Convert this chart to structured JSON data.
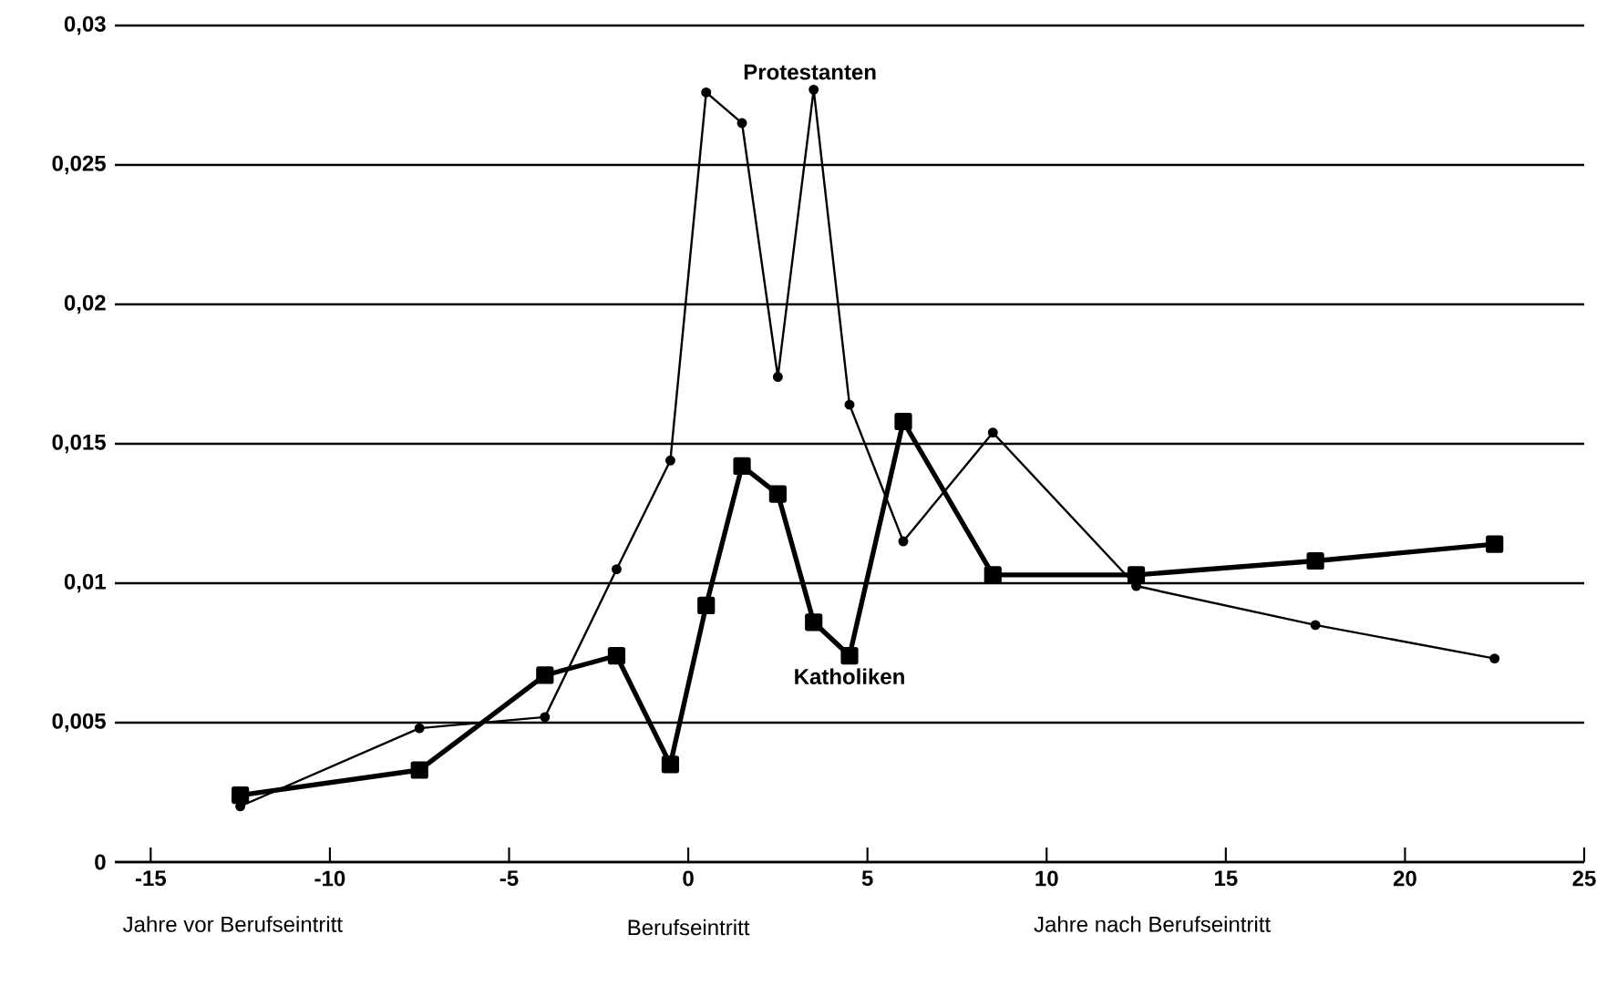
{
  "chart_data": {
    "type": "line",
    "xlabel": "Berufseintritt",
    "annotations": [
      "Jahre vor Berufseintritt",
      "Jahre nach Berufseintritt"
    ],
    "xlim": [
      -16,
      25
    ],
    "xticks": [
      -15,
      -10,
      -5,
      0,
      5,
      10,
      15,
      20,
      25
    ],
    "ylim": [
      0,
      0.03
    ],
    "yticks": [
      {
        "value": 0,
        "label": "0"
      },
      {
        "value": 0.005,
        "label": "0,005"
      },
      {
        "value": 0.01,
        "label": "0,01"
      },
      {
        "value": 0.015,
        "label": "0,015"
      },
      {
        "value": 0.02,
        "label": "0,02"
      },
      {
        "value": 0.025,
        "label": "0,025"
      },
      {
        "value": 0.03,
        "label": "0,03"
      }
    ],
    "grid": "y",
    "series": [
      {
        "name": "Protestanten",
        "color": "#000000",
        "marker": "circle",
        "x": [
          -12.5,
          -7.5,
          -4,
          -2,
          -0.5,
          0.5,
          1.5,
          2.5,
          3.5,
          4.5,
          6,
          8.5,
          12.5,
          17.5,
          22.5
        ],
        "values": [
          0.002,
          0.0048,
          0.0052,
          0.0105,
          0.0144,
          0.0276,
          0.0265,
          0.0174,
          0.0277,
          0.0164,
          0.0115,
          0.0154,
          0.0099,
          0.0085,
          0.0073
        ]
      },
      {
        "name": "Katholiken",
        "color": "#000000",
        "marker": "square",
        "x": [
          -12.5,
          -7.5,
          -4,
          -2,
          -0.5,
          0.5,
          1.5,
          2.5,
          3.5,
          4.5,
          6,
          8.5,
          12.5,
          17.5,
          22.5
        ],
        "values": [
          0.0024,
          0.0033,
          0.0067,
          0.0074,
          0.0035,
          0.0092,
          0.0142,
          0.0132,
          0.0086,
          0.0074,
          0.0158,
          0.0103,
          0.0103,
          0.0108,
          0.0114
        ]
      }
    ]
  }
}
